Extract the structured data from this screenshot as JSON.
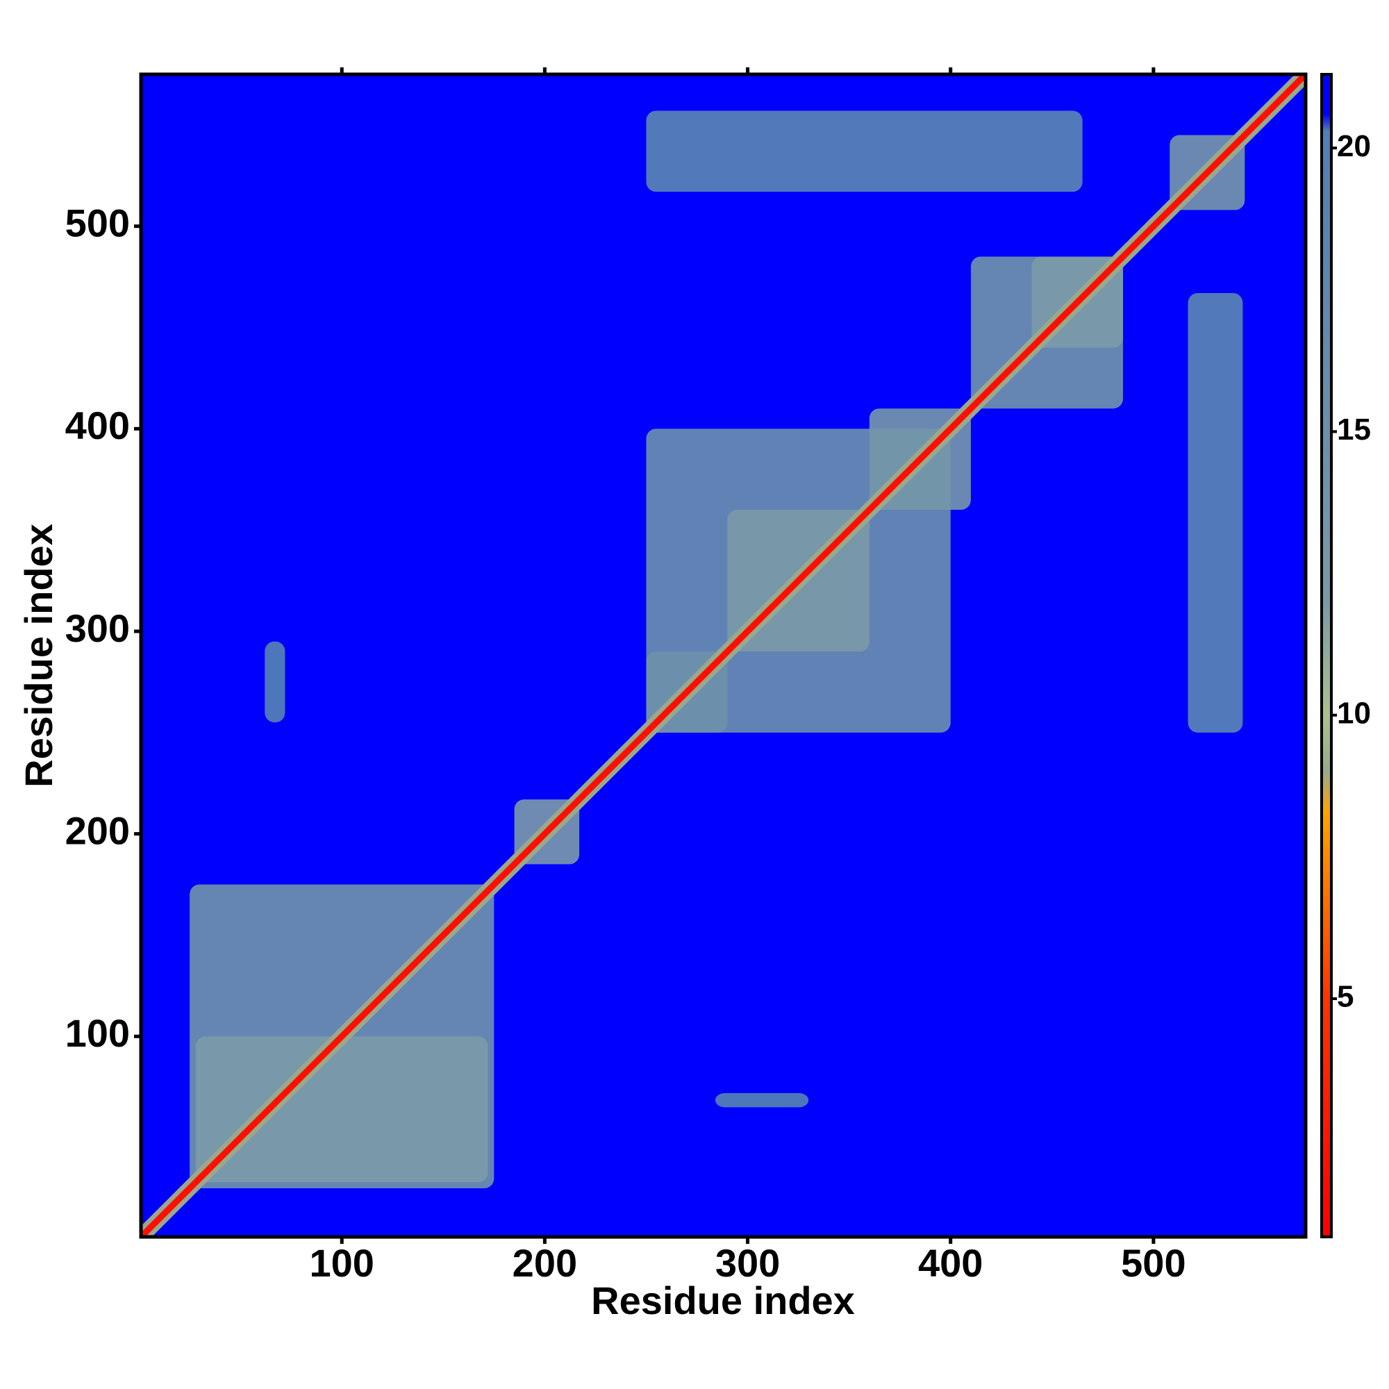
{
  "chart_data": {
    "type": "heatmap",
    "xlabel": "Residue index",
    "ylabel": "Residue index",
    "xlim": [
      1,
      575
    ],
    "ylim": [
      1,
      575
    ],
    "xticks": [
      100,
      200,
      300,
      400,
      500
    ],
    "yticks": [
      100,
      200,
      300,
      400,
      500
    ],
    "background_value": 21,
    "diagonal": {
      "core": 2,
      "halo": 9
    },
    "regions": [
      {
        "x": [
          25,
          175
        ],
        "y": [
          25,
          175
        ],
        "value": 14
      },
      {
        "x": [
          28,
          172
        ],
        "y": [
          28,
          100
        ],
        "value": 12
      },
      {
        "x": [
          185,
          217
        ],
        "y": [
          185,
          217
        ],
        "value": 12
      },
      {
        "x": [
          250,
          290
        ],
        "y": [
          250,
          290
        ],
        "value": 12
      },
      {
        "x": [
          250,
          400
        ],
        "y": [
          250,
          400
        ],
        "value": 15
      },
      {
        "x": [
          290,
          360
        ],
        "y": [
          290,
          360
        ],
        "value": 12
      },
      {
        "x": [
          360,
          410
        ],
        "y": [
          360,
          410
        ],
        "value": 13
      },
      {
        "x": [
          410,
          485
        ],
        "y": [
          410,
          485
        ],
        "value": 14
      },
      {
        "x": [
          440,
          485
        ],
        "y": [
          440,
          485
        ],
        "value": 12
      },
      {
        "x": [
          508,
          545
        ],
        "y": [
          508,
          545
        ],
        "value": 13
      },
      {
        "x": [
          250,
          465
        ],
        "y": [
          517,
          557
        ],
        "value": 18
      },
      {
        "x": [
          517,
          544
        ],
        "y": [
          250,
          467
        ],
        "value": 18
      },
      {
        "x": [
          62,
          72
        ],
        "y": [
          255,
          295
        ],
        "value": 19
      },
      {
        "x": [
          284,
          330
        ],
        "y": [
          65,
          72
        ],
        "value": 19
      }
    ],
    "clim": [
      0.8,
      21.3
    ],
    "cticks": [
      5,
      10,
      15,
      20
    ],
    "colorscale": [
      {
        "value": 0.8,
        "color": "#ff0000"
      },
      {
        "value": 5,
        "color": "#ff3300"
      },
      {
        "value": 8.3,
        "color": "#ffa500"
      },
      {
        "value": 9,
        "color": "#9aa88c"
      },
      {
        "value": 10,
        "color": "#a9c18e"
      },
      {
        "value": 12,
        "color": "#7b9aa8"
      },
      {
        "value": 20.3,
        "color": "#4f7fb4"
      },
      {
        "value": 20.6,
        "color": "#0000ff"
      },
      {
        "value": 21.3,
        "color": "#0000ff"
      }
    ]
  }
}
